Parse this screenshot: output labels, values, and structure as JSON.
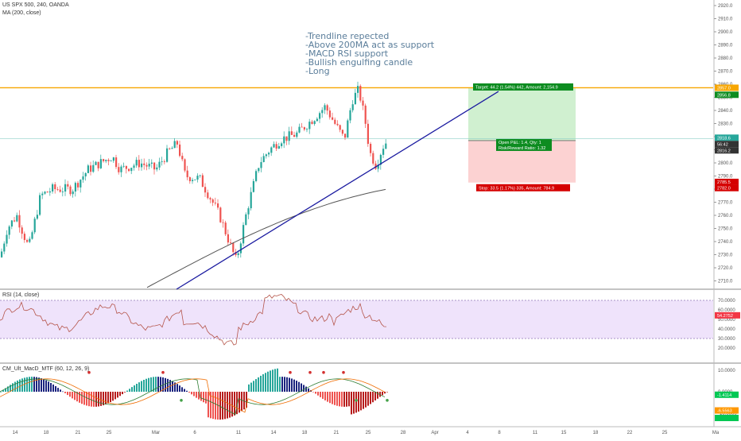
{
  "header": {
    "symbol": "US SPX 500, 240, OANDA",
    "indicator": "MA (200, close)"
  },
  "annotation": [
    "-Trendline repected",
    "-Above 200MA act as support",
    "-MACD RSI support",
    "-Bullish engulfing candle",
    "-Long"
  ],
  "position": {
    "target_label": "Target: 44.2 (1.54%) 442, Amount: 2,154.9",
    "entry_label": "Open P&L: 1.4, Qty: 1",
    "ratio_label": "Risk/Reward Ratio: 1.32",
    "stop_label": "Stop: 33.5 (1.17%) 335, Amount: 784.9"
  },
  "price_axis": {
    "ticks": [
      "2920.0",
      "2910.0",
      "2900.0",
      "2890.0",
      "2880.0",
      "2870.0",
      "2860.0",
      "2850.0",
      "2840.0",
      "2830.0",
      "2820.0",
      "2810.0",
      "2800.0",
      "2790.0",
      "2780.0",
      "2770.0",
      "2760.0",
      "2750.0",
      "2740.0",
      "2730.0",
      "2720.0",
      "2710.0"
    ],
    "badges": [
      {
        "value": "2857.0",
        "color": "#f7a600"
      },
      {
        "value": "2856.8",
        "color": "#0d8c20"
      },
      {
        "value": "2818.6",
        "color": "#26a69a"
      },
      {
        "value": "56:42",
        "color": "#333333"
      },
      {
        "value": "2816.2",
        "color": "#333333"
      },
      {
        "value": "2785.5",
        "color": "#d50000"
      },
      {
        "value": "2782.0",
        "color": "#d50000"
      }
    ]
  },
  "rsi": {
    "label": "RSI (14, close)",
    "ticks": [
      "70.0000",
      "60.0000",
      "50.0000",
      "40.0000",
      "30.0000",
      "20.0000"
    ],
    "badge": "54.2752",
    "badge_color": "#f23645"
  },
  "macd": {
    "label": "CM_Ult_MacD_MTF (60, 12, 26, 9)",
    "ticks": [
      "10.0000",
      "0.0000",
      "-10.0000"
    ],
    "badges": [
      {
        "value": "-1.4114",
        "color": "#00c853"
      },
      {
        "value": "-6.5563",
        "color": "#ff9800"
      },
      {
        "value": "",
        "color": "#00c853"
      }
    ]
  },
  "time_axis": {
    "labels": [
      "14",
      "18",
      "21",
      "25",
      "Mar",
      "6",
      "11",
      "14",
      "18",
      "21",
      "25",
      "28",
      "Apr",
      "4",
      "8",
      "11",
      "15",
      "18",
      "22",
      "25",
      "Ma"
    ]
  },
  "colors": {
    "up": "#26a69a",
    "down": "#ef5350",
    "ma": "#555555",
    "trendline": "#1a1aa0",
    "resistance": "#f7a600",
    "target_zone": "#c8edc8",
    "stop_zone": "#fbcaca",
    "rsi_band": "#efe3fb",
    "rsi_line": "#b5554a"
  }
}
